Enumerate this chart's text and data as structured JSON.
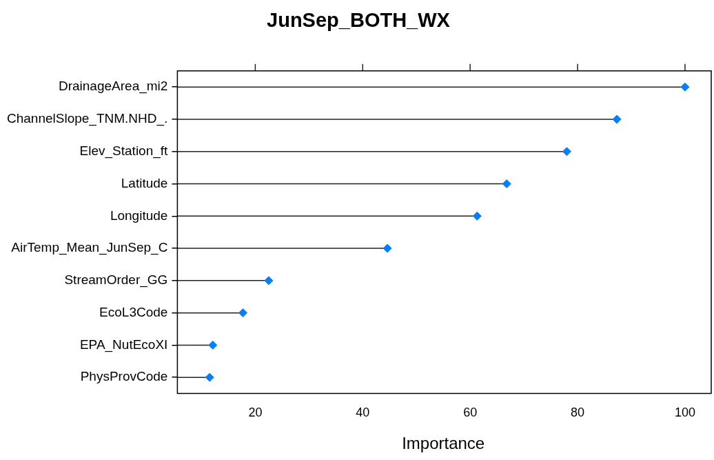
{
  "chart_data": {
    "type": "lollipop",
    "orientation": "horizontal",
    "title": "JunSep_BOTH_WX",
    "xlabel": "Importance",
    "categories": [
      "DrainageArea_mi2",
      "ChannelSlope_TNM.NHD_.",
      "Elev_Station_ft",
      "Latitude",
      "Longitude",
      "AirTemp_Mean_JunSep_C",
      "StreamOrder_GG",
      "EcoL3Code",
      "EPA_NutEcoXI",
      "PhysProvCode"
    ],
    "values": [
      100,
      87.3,
      78,
      66.8,
      61.3,
      44.6,
      22.5,
      17.7,
      12.1,
      11.5
    ],
    "color": "#0080ff",
    "marker": "diamond",
    "xlim": [
      5.5,
      104.5
    ],
    "xticks": [
      20,
      40,
      60,
      80,
      100
    ]
  }
}
